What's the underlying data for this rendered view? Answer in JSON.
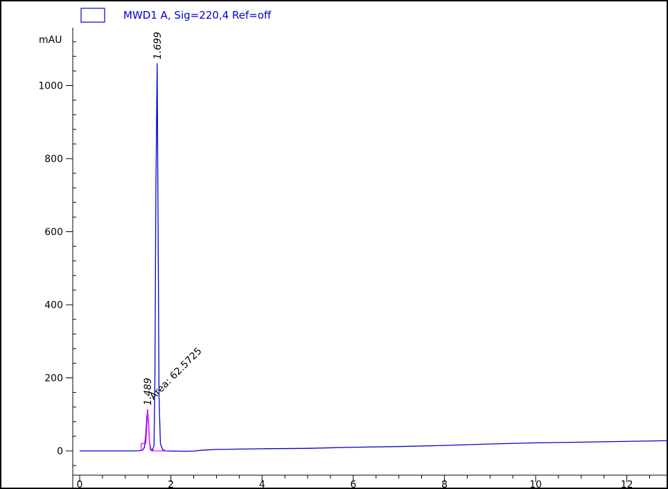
{
  "chart_data": {
    "type": "line",
    "legend": {
      "label": "MWD1 A, Sig=220,4 Ref=off",
      "placement": "top-left"
    },
    "ylabel": "mAU",
    "xlabel": "",
    "xlim": [
      0,
      12.9
    ],
    "ylim": [
      -65,
      1150
    ],
    "x_ticks": [
      0,
      2,
      4,
      6,
      8,
      10,
      12
    ],
    "y_ticks": [
      0,
      200,
      400,
      600,
      800,
      1000
    ],
    "series": [
      {
        "name": "MWD1 A, Sig=220,4 Ref=off",
        "color": "#0000cc",
        "points": [
          [
            0,
            0
          ],
          [
            1.2,
            0
          ],
          [
            1.3,
            0.5
          ],
          [
            1.38,
            2
          ],
          [
            1.42,
            10
          ],
          [
            1.45,
            45
          ],
          [
            1.47,
            90
          ],
          [
            1.489,
            113
          ],
          [
            1.51,
            80
          ],
          [
            1.53,
            25
          ],
          [
            1.56,
            5
          ],
          [
            1.6,
            2
          ],
          [
            1.63,
            15
          ],
          [
            1.65,
            200
          ],
          [
            1.67,
            700
          ],
          [
            1.699,
            1060
          ],
          [
            1.72,
            600
          ],
          [
            1.74,
            150
          ],
          [
            1.77,
            20
          ],
          [
            1.82,
            3
          ],
          [
            1.9,
            0
          ],
          [
            2.3,
            -1
          ],
          [
            2.5,
            -0.5
          ],
          [
            2.7,
            2
          ],
          [
            3.0,
            4
          ],
          [
            3.5,
            5
          ],
          [
            4.0,
            6
          ],
          [
            5.0,
            7
          ],
          [
            6.0,
            10
          ],
          [
            7.0,
            12
          ],
          [
            8.0,
            15
          ],
          [
            9.0,
            19
          ],
          [
            10.0,
            22
          ],
          [
            11.0,
            24
          ],
          [
            12.0,
            26
          ],
          [
            12.9,
            28
          ]
        ]
      },
      {
        "name": "",
        "color": "#ff00ff",
        "points": [
          [
            1.35,
            0
          ],
          [
            1.35,
            20
          ],
          [
            1.45,
            20
          ],
          [
            1.47,
            65
          ],
          [
            1.489,
            113
          ],
          [
            1.5,
            95
          ],
          [
            1.53,
            25
          ],
          [
            1.55,
            3
          ],
          [
            1.57,
            0
          ],
          [
            1.9,
            0
          ]
        ]
      }
    ],
    "annotations": [
      {
        "x": 1.699,
        "y": 1060,
        "text": "1.699",
        "style": "rt"
      },
      {
        "x": 1.489,
        "y": 113,
        "text": "1.489",
        "style": "rt"
      },
      {
        "x": 1.62,
        "y": 120,
        "text": "Area: 62.5725",
        "style": "area"
      }
    ]
  }
}
